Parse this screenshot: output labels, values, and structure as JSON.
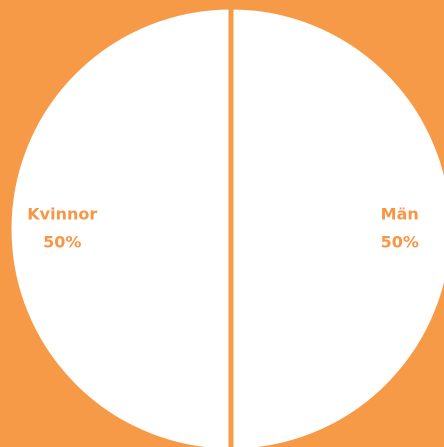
{
  "chart_data": {
    "type": "pie",
    "categories": [
      "Kvinnor",
      "Män"
    ],
    "values": [
      50,
      50
    ],
    "value_labels": [
      "50%",
      "50%"
    ],
    "colors": [
      "#ffffff",
      "#ffffff"
    ]
  }
}
